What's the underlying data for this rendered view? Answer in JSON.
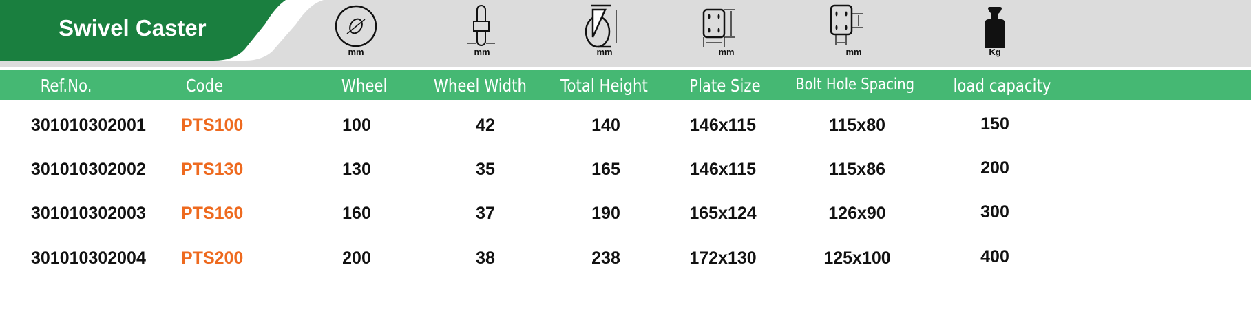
{
  "title": "Swivel Caster",
  "icons": [
    {
      "name": "wheel-diameter-icon",
      "unit": "mm"
    },
    {
      "name": "wheel-width-icon",
      "unit": "mm"
    },
    {
      "name": "total-height-icon",
      "unit": "mm"
    },
    {
      "name": "plate-size-icon",
      "unit": "mm"
    },
    {
      "name": "bolt-hole-spacing-icon",
      "unit": "mm"
    },
    {
      "name": "weight-icon",
      "unit": "Kg"
    }
  ],
  "headers": [
    "Ref.No.",
    "Code",
    "Wheel",
    "Wheel Width",
    "Total Height",
    "Plate Size",
    "Bolt Hole Spacing",
    "load capacity"
  ],
  "rows": [
    [
      "301010302001",
      "PTS100",
      "100",
      "42",
      "140",
      "146x115",
      "115x80",
      "150"
    ],
    [
      "301010302002",
      "PTS130",
      "130",
      "35",
      "165",
      "146x115",
      "115x86",
      "200"
    ],
    [
      "301010302003",
      "PTS160",
      "160",
      "37",
      "190",
      "165x124",
      "126x90",
      "300"
    ],
    [
      "301010302004",
      "PTS200",
      "200",
      "38",
      "238",
      "172x130",
      "125x100",
      "400"
    ]
  ],
  "colors": {
    "banner": "#1a7f3f",
    "header": "#45b873",
    "code": "#ee6a1f",
    "gray": "#dcdcdc"
  }
}
